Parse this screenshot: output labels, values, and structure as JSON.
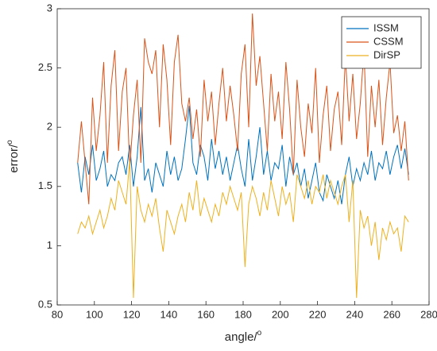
{
  "chart_data": {
    "type": "line",
    "x_label": {
      "text": "angle/",
      "superscript": "o"
    },
    "y_label": {
      "text": "error/",
      "superscript": "o"
    },
    "x": [
      91,
      93,
      95,
      97,
      99,
      101,
      103,
      105,
      107,
      109,
      111,
      113,
      115,
      117,
      119,
      121,
      123,
      125,
      127,
      129,
      131,
      133,
      135,
      137,
      139,
      141,
      143,
      145,
      147,
      149,
      151,
      153,
      155,
      157,
      159,
      161,
      163,
      165,
      167,
      169,
      171,
      173,
      175,
      177,
      179,
      181,
      183,
      185,
      187,
      189,
      191,
      193,
      195,
      197,
      199,
      201,
      203,
      205,
      207,
      209,
      211,
      213,
      215,
      217,
      219,
      221,
      223,
      225,
      227,
      229,
      231,
      233,
      235,
      237,
      239,
      241,
      243,
      245,
      247,
      249,
      251,
      253,
      255,
      257,
      259,
      261,
      263,
      265,
      267,
      269
    ],
    "series": [
      {
        "name": "ISSM",
        "color": "#0072bd",
        "values": [
          1.7,
          1.45,
          1.75,
          1.6,
          1.85,
          1.55,
          1.65,
          1.8,
          1.5,
          1.6,
          1.55,
          1.7,
          1.75,
          1.6,
          1.85,
          1.5,
          1.75,
          2.17,
          1.55,
          1.65,
          1.45,
          1.7,
          1.6,
          1.5,
          1.8,
          1.6,
          1.75,
          1.55,
          1.65,
          1.9,
          2.18,
          1.7,
          1.6,
          1.85,
          1.75,
          1.55,
          1.9,
          1.65,
          1.8,
          1.6,
          1.75,
          1.55,
          1.7,
          1.85,
          1.65,
          1.5,
          1.9,
          1.55,
          1.75,
          2.0,
          1.6,
          1.8,
          1.55,
          1.7,
          1.65,
          1.85,
          1.5,
          1.75,
          1.6,
          1.7,
          1.5,
          1.65,
          1.4,
          1.55,
          1.7,
          1.45,
          1.38,
          1.6,
          1.5,
          1.4,
          1.55,
          1.35,
          1.6,
          1.75,
          1.5,
          1.65,
          1.55,
          1.7,
          1.6,
          1.8,
          1.55,
          1.7,
          1.65,
          1.8,
          1.6,
          1.75,
          1.85,
          1.65,
          1.82,
          1.6
        ]
      },
      {
        "name": "CSSM",
        "color": "#d95319",
        "values": [
          1.7,
          2.05,
          1.7,
          1.35,
          2.25,
          1.8,
          2.1,
          2.55,
          1.7,
          2.35,
          2.65,
          1.8,
          2.3,
          2.5,
          1.65,
          2.1,
          2.4,
          1.7,
          2.75,
          2.55,
          2.45,
          2.65,
          2.0,
          2.7,
          2.4,
          1.85,
          2.55,
          2.78,
          2.2,
          2.05,
          2.25,
          1.9,
          2.15,
          1.75,
          2.4,
          2.05,
          2.3,
          1.85,
          2.2,
          2.5,
          2.05,
          2.35,
          2.1,
          1.8,
          2.45,
          2.7,
          2.0,
          2.96,
          2.35,
          2.6,
          2.2,
          1.8,
          2.45,
          2.05,
          2.3,
          1.9,
          2.55,
          2.15,
          1.6,
          2.4,
          2.0,
          1.75,
          2.2,
          1.95,
          2.5,
          1.7,
          2.1,
          2.35,
          1.8,
          2.15,
          2.3,
          1.85,
          2.6,
          2.05,
          2.45,
          1.9,
          2.2,
          2.65,
          1.75,
          2.35,
          2.0,
          2.4,
          1.85,
          2.25,
          2.55,
          1.95,
          2.1,
          1.8,
          2.05,
          1.55
        ]
      },
      {
        "name": "DirSP",
        "color": "#edb120",
        "values": [
          1.1,
          1.2,
          1.15,
          1.25,
          1.1,
          1.2,
          1.3,
          1.15,
          1.25,
          1.4,
          1.3,
          1.55,
          1.45,
          1.35,
          1.72,
          0.56,
          1.5,
          1.3,
          1.2,
          1.35,
          1.25,
          1.4,
          1.15,
          0.95,
          1.3,
          1.2,
          1.1,
          1.25,
          1.35,
          1.2,
          1.45,
          1.3,
          1.55,
          1.25,
          1.4,
          1.3,
          1.2,
          1.35,
          1.25,
          1.45,
          1.35,
          1.5,
          1.4,
          1.3,
          1.45,
          0.82,
          1.35,
          1.5,
          1.4,
          1.25,
          1.45,
          1.3,
          1.55,
          1.4,
          1.25,
          1.5,
          1.35,
          1.45,
          1.2,
          1.6,
          1.5,
          1.4,
          1.55,
          1.35,
          1.5,
          1.45,
          1.6,
          1.4,
          1.55,
          1.45,
          1.35,
          1.5,
          1.6,
          1.2,
          1.55,
          0.56,
          1.3,
          1.15,
          1.25,
          1.0,
          1.2,
          0.88,
          1.15,
          1.05,
          1.2,
          1.1,
          1.15,
          0.95,
          1.25,
          1.2
        ]
      }
    ],
    "xlim": [
      80,
      280
    ],
    "xticks": [
      80,
      100,
      120,
      140,
      160,
      180,
      200,
      220,
      240,
      260,
      280
    ],
    "ylim": [
      0.5,
      3
    ],
    "yticks": [
      0.5,
      1,
      1.5,
      2,
      2.5,
      3
    ],
    "legend": "top-right"
  }
}
